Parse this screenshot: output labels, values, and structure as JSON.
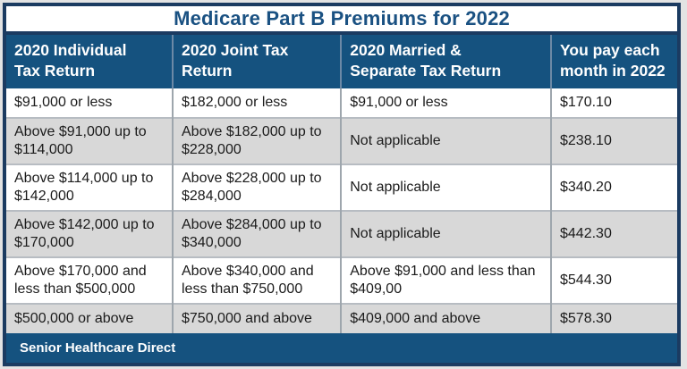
{
  "title": "Medicare Part B Premiums for 2022",
  "table": {
    "headers": [
      "2020 Individual\nTax Return",
      "2020 Joint Tax\nReturn",
      "2020 Married  &\nSeparate Tax Return",
      "You pay each\nmonth in 2022"
    ],
    "rows": [
      [
        "$91,000 or less",
        "$182,000 or less",
        "$91,000 or less",
        "$170.10"
      ],
      [
        "Above $91,000 up to $114,000",
        "Above $182,000 up to $228,000",
        "Not applicable",
        "$238.10"
      ],
      [
        "Above $114,000 up to $142,000",
        "Above $228,000 up to $284,000",
        "Not applicable",
        "$340.20"
      ],
      [
        "Above $142,000 up to $170,000",
        "Above $284,000 up to $340,000",
        "Not applicable",
        "$442.30"
      ],
      [
        "Above $170,000 and less than $500,000",
        "Above $340,000 and less than $750,000",
        "Above $91,000 and less than $409,00",
        "$544.30"
      ],
      [
        "$500,000 or above",
        "$750,000 and above",
        "$409,000 and above",
        "$578.30"
      ]
    ],
    "footer": "Senior Healthcare Direct"
  },
  "colors": {
    "band_blue": "#15527f",
    "border_navy": "#1b3b61",
    "title_text_blue": "#1a5182",
    "alt_row_gray": "#d8d8d8",
    "body_text": "#1b1b1b",
    "page_background": "#e3e3e3"
  }
}
